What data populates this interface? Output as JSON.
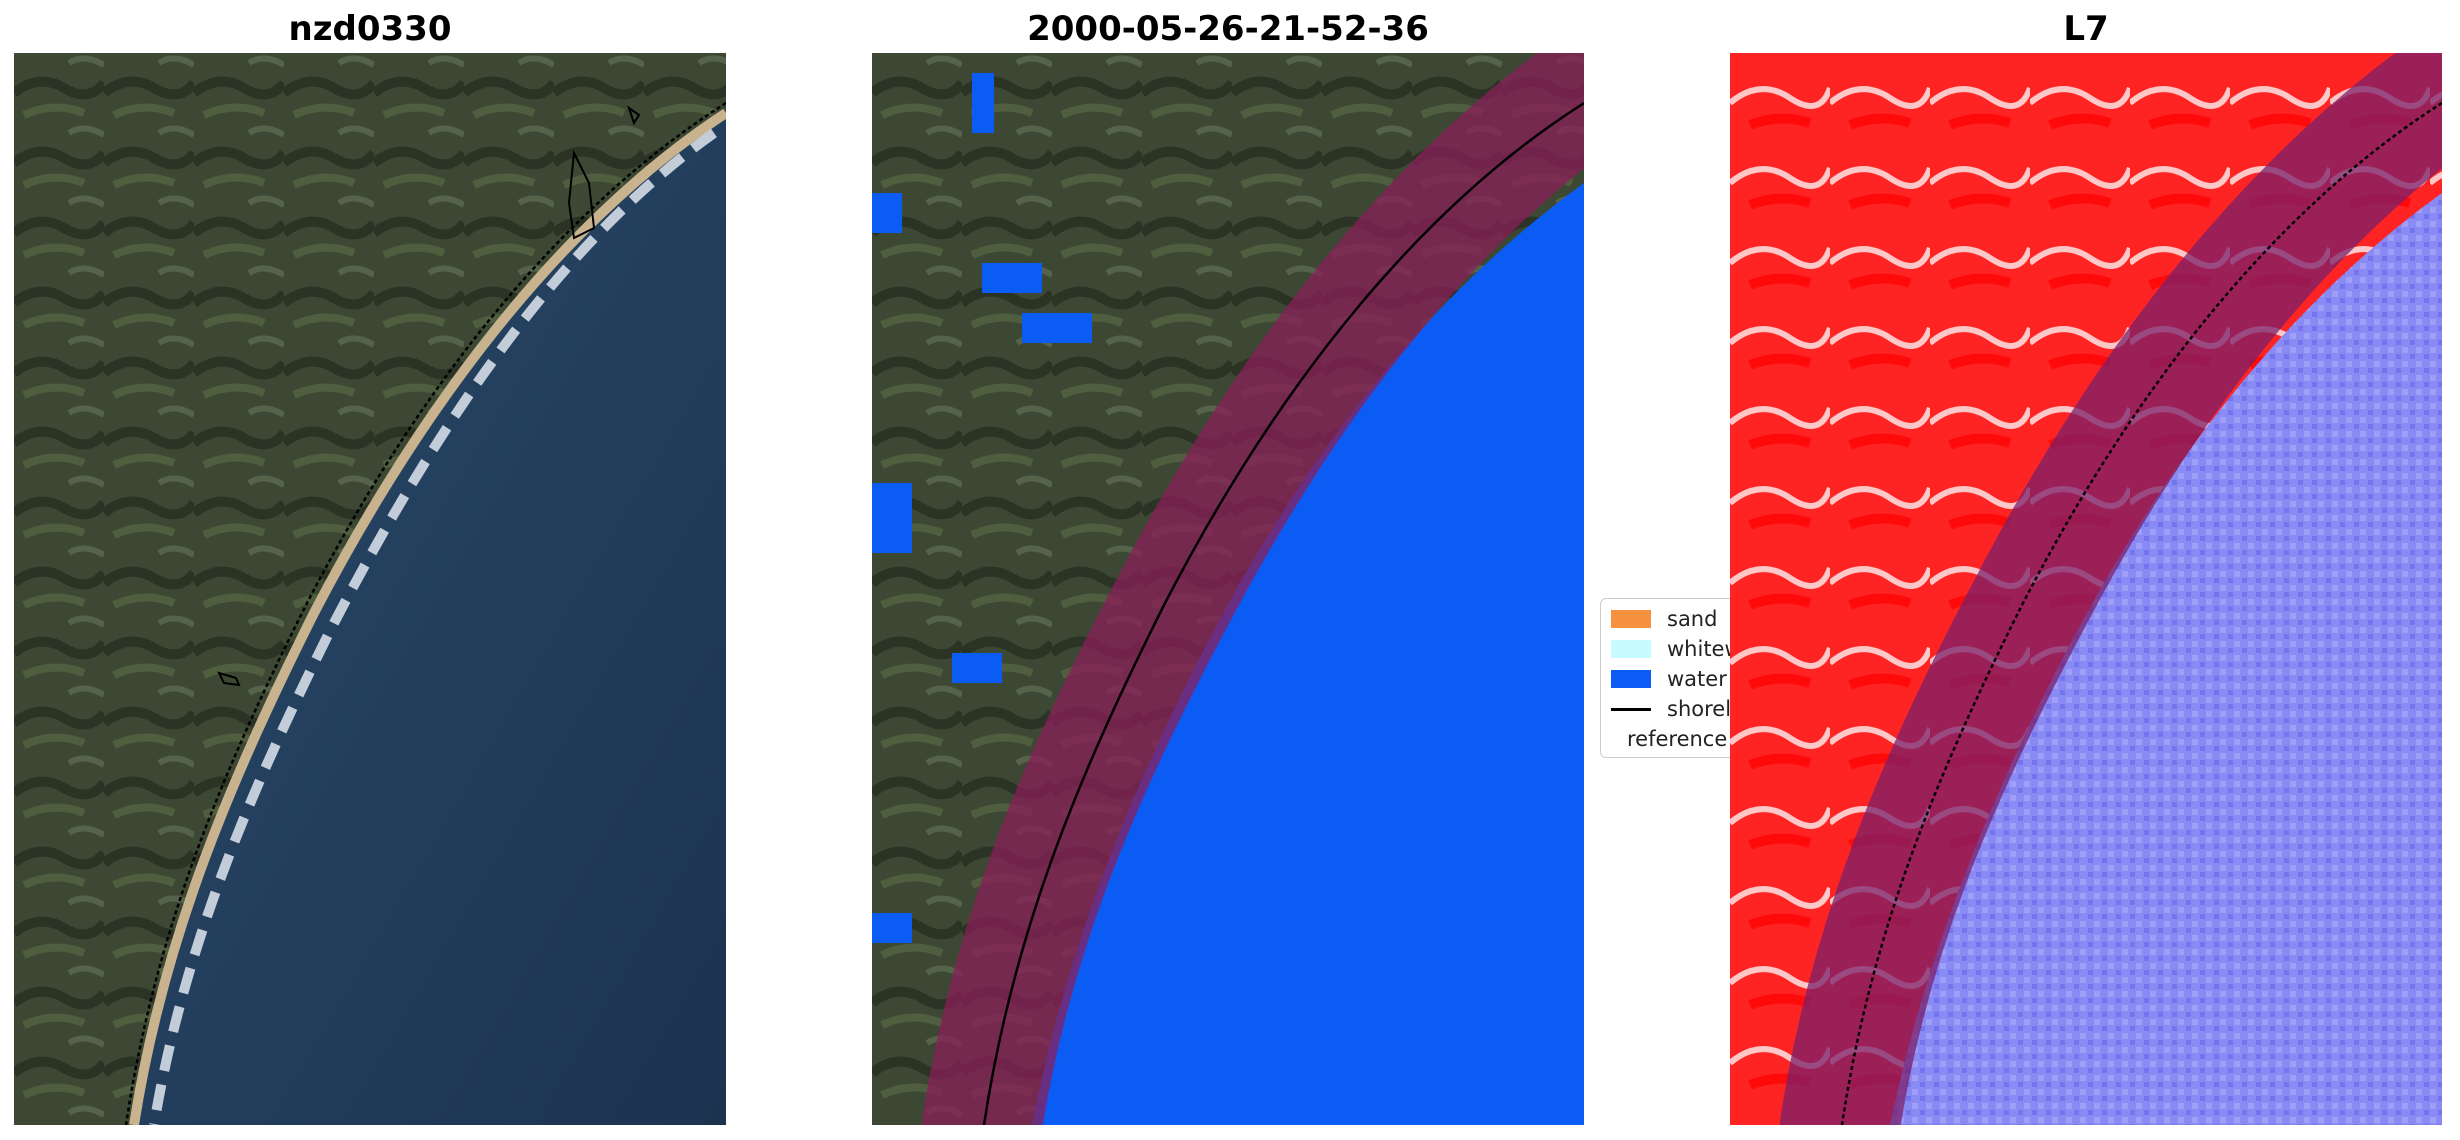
{
  "panels": [
    {
      "title": "nzd0330"
    },
    {
      "title": "2000-05-26-21-52-36"
    },
    {
      "title": "L7"
    }
  ],
  "legend": {
    "placement": "center-left of third panel",
    "items": [
      {
        "label": "sand",
        "color": "#f5913f"
      },
      {
        "label": "whitewater",
        "color": "#c8fbff"
      },
      {
        "label": "water",
        "color": "#0a5cf5"
      },
      {
        "label": "shoreline",
        "color": "#000000"
      },
      {
        "label": "reference shoreline buffer",
        "color": "#8b2b2b"
      }
    ]
  },
  "colors": {
    "land_dark": "#3a4531",
    "ocean_deep": "#1f3550",
    "water_class": "#0a5cf5",
    "buffer_overlay": "#8a1f5a",
    "index_land": "#ff1a1a",
    "index_water": "#8a8af5"
  }
}
